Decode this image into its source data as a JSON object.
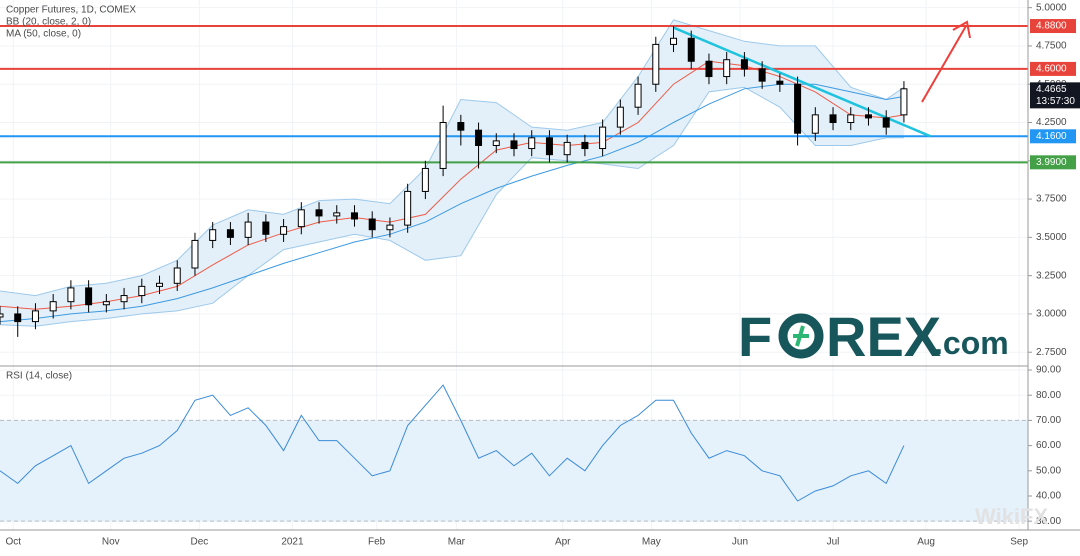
{
  "chart_data": [
    {
      "type": "candlestick",
      "title": "Copper Futures, 1D, COMEX",
      "indicators": [
        "BB (20, close, 2, 0)",
        "MA (50, close, 0)"
      ],
      "xlim": [
        0,
        232
      ],
      "ylim": [
        2.66,
        5.05
      ],
      "yticks": [
        {
          "value": 2.75,
          "label": "2.7500"
        },
        {
          "value": 3.0,
          "label": "3.0000"
        },
        {
          "value": 3.25,
          "label": "3.2500"
        },
        {
          "value": 3.5,
          "label": "3.5000"
        },
        {
          "value": 3.75,
          "label": "3.7500"
        },
        {
          "value": 4.0,
          "label": "4.0000"
        },
        {
          "value": 4.25,
          "label": "4.2500"
        },
        {
          "value": 4.5,
          "label": "4.5000"
        },
        {
          "value": 4.75,
          "label": "4.7500"
        },
        {
          "value": 5.0,
          "label": "5.0000"
        }
      ],
      "x": [
        0,
        4,
        8,
        12,
        16,
        20,
        24,
        28,
        32,
        36,
        40,
        44,
        48,
        52,
        56,
        60,
        64,
        68,
        72,
        76,
        80,
        84,
        88,
        92,
        96,
        100,
        104,
        108,
        112,
        116,
        120,
        124,
        128,
        132,
        136,
        140,
        144,
        148,
        152,
        156,
        160,
        164,
        168,
        172,
        176,
        180,
        184,
        188,
        192,
        196,
        200,
        204
      ],
      "open": [
        2.98,
        3.0,
        2.95,
        3.02,
        3.08,
        3.17,
        3.06,
        3.08,
        3.12,
        3.18,
        3.2,
        3.3,
        3.48,
        3.55,
        3.5,
        3.6,
        3.52,
        3.57,
        3.68,
        3.64,
        3.66,
        3.62,
        3.55,
        3.58,
        3.8,
        3.95,
        4.25,
        4.2,
        4.1,
        4.13,
        4.08,
        4.15,
        4.04,
        4.12,
        4.08,
        4.22,
        4.35,
        4.5,
        4.76,
        4.8,
        4.65,
        4.55,
        4.66,
        4.6,
        4.52,
        4.5,
        4.18,
        4.3,
        4.25,
        4.3,
        4.28,
        4.3
      ],
      "high": [
        3.05,
        3.05,
        3.07,
        3.13,
        3.22,
        3.22,
        3.13,
        3.17,
        3.23,
        3.25,
        3.35,
        3.53,
        3.6,
        3.6,
        3.66,
        3.65,
        3.62,
        3.73,
        3.73,
        3.71,
        3.71,
        3.67,
        3.63,
        3.85,
        4.0,
        4.36,
        4.3,
        4.25,
        4.18,
        4.18,
        4.2,
        4.2,
        4.17,
        4.17,
        4.27,
        4.4,
        4.55,
        4.81,
        4.88,
        4.85,
        4.7,
        4.71,
        4.71,
        4.65,
        4.57,
        4.55,
        4.35,
        4.35,
        4.35,
        4.35,
        4.33,
        4.52
      ],
      "low": [
        2.93,
        2.85,
        2.9,
        2.97,
        3.03,
        3.01,
        3.01,
        3.03,
        3.07,
        3.13,
        3.15,
        3.25,
        3.43,
        3.45,
        3.45,
        3.47,
        3.47,
        3.52,
        3.59,
        3.59,
        3.57,
        3.5,
        3.5,
        3.53,
        3.75,
        3.9,
        4.1,
        3.95,
        4.05,
        4.03,
        4.03,
        3.99,
        3.99,
        4.03,
        4.03,
        4.17,
        4.3,
        4.45,
        4.71,
        4.6,
        4.5,
        4.5,
        4.55,
        4.47,
        4.45,
        4.1,
        4.13,
        4.2,
        4.2,
        4.23,
        4.17,
        4.25
      ],
      "close": [
        3.0,
        2.95,
        3.02,
        3.08,
        3.17,
        3.06,
        3.08,
        3.12,
        3.18,
        3.2,
        3.3,
        3.48,
        3.55,
        3.5,
        3.6,
        3.52,
        3.57,
        3.68,
        3.64,
        3.66,
        3.62,
        3.55,
        3.58,
        3.8,
        3.95,
        4.25,
        4.2,
        4.1,
        4.13,
        4.08,
        4.15,
        4.04,
        4.12,
        4.08,
        4.22,
        4.35,
        4.5,
        4.76,
        4.8,
        4.65,
        4.55,
        4.66,
        4.6,
        4.52,
        4.5,
        4.18,
        4.3,
        4.25,
        4.3,
        4.28,
        4.22,
        4.47
      ],
      "up_color": "#ffffff",
      "down_color": "#000000",
      "overlay_x": [
        0,
        8,
        16,
        24,
        32,
        40,
        48,
        56,
        64,
        72,
        80,
        88,
        96,
        104,
        112,
        120,
        128,
        136,
        144,
        152,
        160,
        168,
        176,
        184,
        192,
        200,
        204
      ],
      "band": {
        "color": "#9ec9ea",
        "fill": "#e3f0fa",
        "upper": [
          3.15,
          3.12,
          3.18,
          3.2,
          3.25,
          3.35,
          3.58,
          3.68,
          3.65,
          3.74,
          3.75,
          3.72,
          3.95,
          4.4,
          4.38,
          4.22,
          4.2,
          4.25,
          4.55,
          4.92,
          4.85,
          4.78,
          4.75,
          4.75,
          4.48,
          4.4,
          4.48
        ],
        "lower": [
          2.93,
          2.92,
          2.95,
          2.97,
          3.0,
          3.02,
          3.07,
          3.25,
          3.42,
          3.47,
          3.52,
          3.48,
          3.35,
          3.38,
          3.78,
          4.02,
          4.0,
          3.98,
          3.95,
          4.1,
          4.45,
          4.48,
          4.35,
          4.1,
          4.1,
          4.15,
          4.15
        ]
      },
      "overlays": [
        {
          "color": "#ef5a45",
          "values": [
            3.05,
            3.03,
            3.05,
            3.08,
            3.12,
            3.18,
            3.32,
            3.45,
            3.53,
            3.6,
            3.63,
            3.6,
            3.65,
            3.88,
            4.07,
            4.12,
            4.1,
            4.12,
            4.25,
            4.5,
            4.65,
            4.62,
            4.55,
            4.45,
            4.3,
            4.28,
            4.3
          ]
        },
        {
          "color": "#3d9ae0",
          "values": [
            2.95,
            2.97,
            3.0,
            3.02,
            3.05,
            3.1,
            3.17,
            3.25,
            3.33,
            3.4,
            3.47,
            3.52,
            3.6,
            3.72,
            3.82,
            3.9,
            3.97,
            4.03,
            4.12,
            4.25,
            4.37,
            4.47,
            4.5,
            4.5,
            4.45,
            4.4,
            4.42
          ]
        }
      ],
      "levels": [
        {
          "value": 4.88,
          "label": "4.8800",
          "color": "#e8433a"
        },
        {
          "value": 4.6,
          "label": "4.6000",
          "color": "#e8433a"
        },
        {
          "value": 4.16,
          "label": "4.1600",
          "color": "#2196f3"
        },
        {
          "value": 3.99,
          "label": "3.9900",
          "color": "#43a047"
        }
      ],
      "trendline": {
        "color": "#1fc3dd",
        "x": [
          152,
          210
        ],
        "values": [
          4.87,
          4.16
        ]
      },
      "last": {
        "value": 4.4665,
        "label": "4.4665",
        "time": "13:57:30"
      },
      "logo": [
        "F",
        "REX",
        ".com"
      ],
      "watermark": "WikiFX"
    },
    {
      "type": "line",
      "title": "RSI (14, close)",
      "xlim": [
        0,
        232
      ],
      "ylim": [
        26.5,
        91.6
      ],
      "xticks": [
        {
          "value": 3,
          "label": "Oct"
        },
        {
          "value": 25,
          "label": "Nov"
        },
        {
          "value": 45,
          "label": "Dec"
        },
        {
          "value": 66,
          "label": "2021"
        },
        {
          "value": 85,
          "label": "Feb"
        },
        {
          "value": 103,
          "label": "Mar"
        },
        {
          "value": 127,
          "label": "Apr"
        },
        {
          "value": 147,
          "label": "May"
        },
        {
          "value": 167,
          "label": "Jun"
        },
        {
          "value": 188,
          "label": "Jul"
        },
        {
          "value": 209,
          "label": "Aug"
        },
        {
          "value": 230,
          "label": "Sep"
        }
      ],
      "yticks": [
        {
          "value": 30,
          "label": "30.00"
        },
        {
          "value": 40,
          "label": "40.00"
        },
        {
          "value": 50,
          "label": "50.00"
        },
        {
          "value": 60,
          "label": "60.00"
        },
        {
          "value": 70,
          "label": "70.00"
        },
        {
          "value": 80,
          "label": "80.00"
        },
        {
          "value": 90,
          "label": "90.00"
        }
      ],
      "zone": [
        30,
        70
      ],
      "zone_color": "#e5f1fb",
      "x": [
        0,
        4,
        8,
        12,
        16,
        20,
        24,
        28,
        32,
        36,
        40,
        44,
        48,
        52,
        56,
        60,
        64,
        68,
        72,
        76,
        80,
        84,
        88,
        92,
        96,
        100,
        104,
        108,
        112,
        116,
        120,
        124,
        128,
        132,
        136,
        140,
        144,
        148,
        152,
        156,
        160,
        164,
        168,
        172,
        176,
        180,
        184,
        188,
        192,
        196,
        200,
        204
      ],
      "color": "#3a8bd8",
      "values": [
        50,
        45,
        52,
        56,
        60,
        45,
        50,
        55,
        57,
        60,
        66,
        78,
        80,
        72,
        75,
        68,
        58,
        72,
        62,
        62,
        55,
        48,
        50,
        68,
        76,
        84,
        70,
        55,
        58,
        52,
        57,
        48,
        55,
        50,
        60,
        68,
        72,
        78,
        78,
        65,
        55,
        58,
        56,
        50,
        48,
        38,
        42,
        44,
        48,
        50,
        45,
        60
      ]
    }
  ]
}
